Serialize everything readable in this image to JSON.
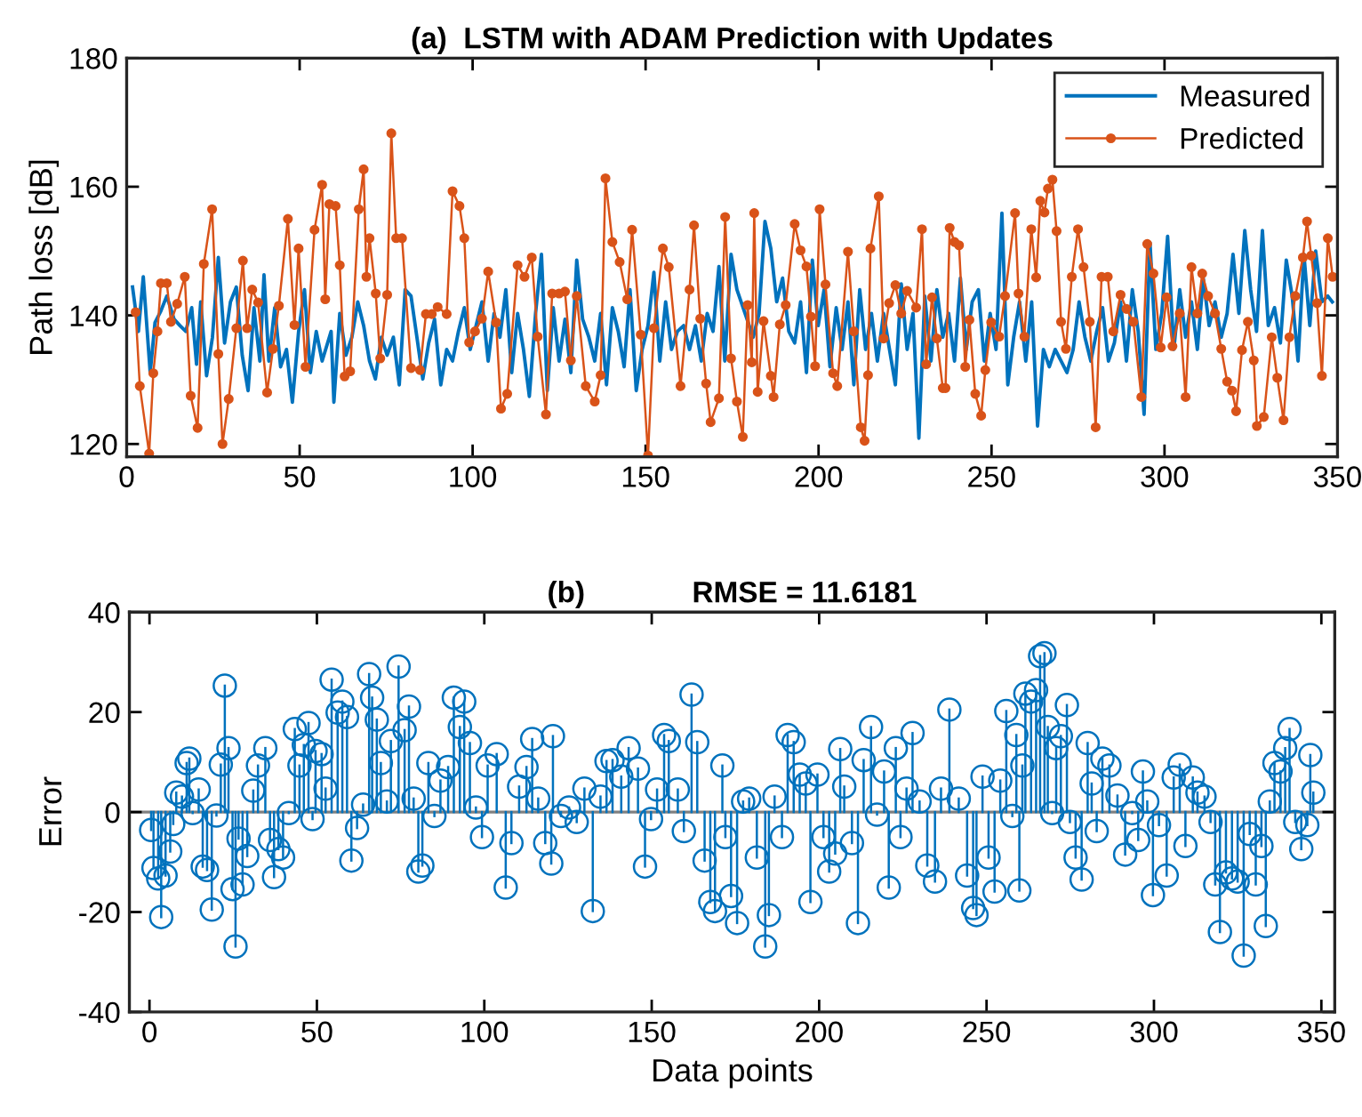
{
  "chart_data": [
    {
      "type": "line",
      "title": "(a)  LSTM with ADAM Prediction with Updates",
      "ylabel": "Path loss [dB]",
      "xlim": [
        0,
        350
      ],
      "xticks": [
        0,
        50,
        100,
        150,
        200,
        250,
        300,
        350
      ],
      "ylim": [
        118,
        180
      ],
      "yticks": [
        120,
        140,
        160,
        180
      ],
      "legend": "top right",
      "grid": false,
      "series": [
        {
          "name": "Measured",
          "color": "#0072bd",
          "x": [
            1.7,
            3.4,
            4.8,
            6.8,
            8.2,
            9.9,
            11.6,
            13.7,
            15.4,
            17.1,
            18.8,
            20.2,
            21.4,
            23.1,
            24.8,
            26.5,
            28.3,
            30,
            31.7,
            33.4,
            35.1,
            36.8,
            38.5,
            39.7,
            41.1,
            42.8,
            44.5,
            46.2,
            47.9,
            49.7,
            51.4,
            53.1,
            54.8,
            56.5,
            59.1,
            59.9,
            61.6,
            63.4,
            65.1,
            66.8,
            68.5,
            70.2,
            71.9,
            73.6,
            75.3,
            77.1,
            78.8,
            80.5,
            82.2,
            83.9,
            85.6,
            87.3,
            89,
            90.8,
            92.5,
            94.2,
            95.9,
            97.6,
            99.3,
            101,
            102.7,
            104.5,
            106.2,
            107.9,
            109.6,
            111.3,
            113,
            114.7,
            116.4,
            118.2,
            119.9,
            121.6,
            123.3,
            125,
            126.7,
            128.4,
            130.1,
            131.8,
            133.6,
            135.3,
            137,
            138.7,
            140.4,
            142.1,
            143.8,
            145.5,
            147.3,
            149,
            150.7,
            152.4,
            154.1,
            155.8,
            157.5,
            159.2,
            161,
            162.7,
            164.4,
            166.1,
            167.8,
            169.5,
            171.2,
            172.9,
            174.7,
            176.4,
            181.1,
            182.8,
            184.5,
            186.2,
            187.9,
            189.6,
            191.4,
            193.1,
            194.8,
            196.5,
            198.2,
            199.9,
            201.6,
            203.3,
            205.1,
            206.8,
            208.5,
            210.2,
            211.9,
            213.6,
            215.3,
            217,
            218.8,
            220.5,
            222.2,
            223.9,
            225.6,
            227.3,
            229,
            230.7,
            232.5,
            234.2,
            235.9,
            237.6,
            239.3,
            241,
            242.7,
            244.4,
            246.2,
            247.9,
            249.6,
            251.3,
            253,
            254.7,
            256.4,
            258.1,
            259.9,
            261.6,
            263.3,
            265,
            266.7,
            268.4,
            270.1,
            271.8,
            273.6,
            275.3,
            277,
            278.7,
            280.4,
            282.1,
            283.8,
            285.5,
            287.3,
            289,
            290.7,
            292.4,
            294.1,
            295.8,
            297.5,
            299.2,
            300.9,
            302.7,
            304.4,
            306.1,
            307.8,
            309.5,
            311.2,
            312.9,
            314.6,
            316.4,
            318.1,
            319.8,
            321.5,
            323.2,
            324.9,
            326.6,
            328.3,
            330,
            331.8,
            333.5,
            335.2,
            336.9,
            338.6,
            340.3,
            342,
            343.7,
            345.5,
            347.2,
            348.5
          ],
          "values": [
            144.4,
            137.5,
            146.0,
            131.1,
            138.9,
            140.7,
            143.0,
            139.4,
            138.4,
            137.5,
            141.2,
            132.4,
            142.1,
            130.6,
            136.6,
            149.0,
            135.7,
            142.1,
            144.4,
            133.8,
            128.3,
            141.2,
            132.9,
            146.3,
            132.9,
            141.2,
            132.0,
            134.7,
            126.5,
            137.5,
            144.0,
            131.1,
            137.5,
            132.9,
            137.5,
            126.5,
            140.3,
            133.8,
            136.6,
            142.1,
            138.4,
            132.9,
            130.1,
            136.6,
            133.8,
            136.6,
            129.2,
            144.0,
            143.0,
            136.6,
            130.1,
            135.7,
            139.4,
            129.2,
            134.7,
            132.9,
            137.5,
            141.2,
            134.7,
            138.4,
            142.1,
            132.9,
            140.3,
            136.6,
            144.0,
            131.1,
            140.3,
            134.7,
            127.4,
            140.3,
            149.5,
            128.3,
            141.2,
            132.9,
            139.4,
            131.1,
            148.6,
            139.4,
            136.6,
            132.9,
            140.3,
            129.2,
            141.2,
            137.5,
            132.0,
            144.0,
            128.3,
            134.7,
            138.4,
            146.7,
            132.9,
            142.1,
            134.7,
            137.5,
            138.4,
            134.7,
            138.4,
            132.9,
            140.3,
            137.5,
            147.6,
            132.9,
            149.5,
            144.0,
            136.6,
            140.3,
            154.6,
            150.4,
            142.1,
            145.8,
            137.5,
            135.7,
            142.1,
            131.1,
            148.6,
            138.4,
            144.0,
            132.0,
            141.2,
            134.7,
            142.1,
            129.2,
            144.0,
            134.7,
            140.3,
            132.9,
            140.3,
            134.7,
            129.2,
            144.9,
            134.7,
            140.3,
            120.9,
            143.0,
            132.9,
            144.0,
            136.6,
            140.3,
            132.9,
            145.8,
            134.7,
            142.1,
            144.0,
            132.9,
            140.3,
            134.7,
            155.9,
            129.2,
            136.6,
            142.1,
            132.9,
            142.1,
            122.8,
            134.7,
            132.0,
            134.7,
            132.9,
            131.1,
            134.7,
            142.1,
            136.6,
            132.9,
            137.5,
            141.2,
            132.9,
            135.7,
            142.1,
            132.9,
            144.0,
            137.5,
            124.6,
            151.3,
            134.7,
            140.3,
            152.3,
            134.7,
            144.0,
            136.6,
            142.1,
            134.7,
            145.8,
            138.4,
            142.1,
            136.6,
            140.3,
            149.5,
            140.3,
            153.2,
            144.0,
            137.5,
            153.2,
            138.4,
            141.2,
            135.7,
            148.6,
            143.0,
            132.9,
            149.5,
            138.4,
            150.0,
            142.1,
            143.0,
            142.1
          ]
        },
        {
          "name": "Predicted",
          "color": "#d95319",
          "marker": "circle",
          "x": [
            2.6,
            3.8,
            6.5,
            7.7,
            8.9,
            9.9,
            11.6,
            12.8,
            14.6,
            16.8,
            18.5,
            20.5,
            22.3,
            24.7,
            26.5,
            27.7,
            29.5,
            31.7,
            33.6,
            34.8,
            36.3,
            38,
            40.6,
            42.3,
            44,
            46.6,
            48.5,
            49.7,
            51.7,
            54.3,
            56.5,
            57.4,
            58.6,
            60.4,
            61.6,
            63,
            64.6,
            67.1,
            68.5,
            69.3,
            70.2,
            72,
            73.3,
            75.3,
            76.5,
            77.9,
            79.6,
            82.2,
            84.8,
            86.5,
            88.2,
            89.9,
            92.5,
            94.2,
            96.2,
            97.6,
            99,
            100.7,
            102.7,
            104.5,
            106.8,
            108.2,
            110,
            113,
            115,
            117.1,
            118.8,
            121.2,
            123,
            125,
            126.7,
            128.4,
            130.1,
            132.7,
            135.3,
            137,
            138.4,
            140.4,
            142.5,
            144.7,
            146.1,
            148.6,
            150.7,
            152.4,
            155,
            156.7,
            160.1,
            162.7,
            164,
            165.8,
            167.5,
            168.8,
            171.2,
            173,
            174.7,
            176.4,
            178.1,
            179.5,
            180.7,
            181.4,
            182.4,
            184.1,
            186.2,
            187,
            188.8,
            190.5,
            193.1,
            194.8,
            196.5,
            197.8,
            199,
            200.3,
            202,
            204.2,
            205.4,
            208.5,
            210.2,
            212.2,
            213.3,
            214.3,
            215,
            217.4,
            218.8,
            220.4,
            222.2,
            223.9,
            225.6,
            228.2,
            229.9,
            231.1,
            232.8,
            234.2,
            235.9,
            236.7,
            237.9,
            239.3,
            240.6,
            242.4,
            243.6,
            245.3,
            247,
            248.2,
            249.9,
            252.2,
            253.9,
            256.8,
            257.8,
            259.5,
            261.5,
            262.9,
            264.1,
            265.3,
            266.3,
            267.6,
            268.8,
            270.1,
            271.5,
            273.2,
            275,
            276.6,
            278.4,
            280.1,
            281.8,
            283.6,
            285.2,
            287.3,
            289,
            291,
            293.3,
            295,
            296.8,
            298.9,
            300.6,
            302.3,
            304.4,
            306.1,
            307.8,
            309.5,
            310.9,
            312.6,
            314.6,
            316.4,
            318.1,
            319.5,
            320.7,
            322.4,
            324.1,
            325.8,
            326.7,
            328.7,
            331,
            332.6,
            334.4,
            336.1,
            337.8,
            340,
            341.2,
            342.4,
            344.1,
            345.5,
            347.2,
            348.6
          ],
          "values": [
            140.5,
            129,
            118.5,
            131,
            137.5,
            145,
            145,
            139,
            141.8,
            146,
            127.5,
            122.5,
            148,
            156.5,
            134,
            120,
            127,
            138,
            148.5,
            138,
            144,
            142,
            128,
            134.8,
            141.5,
            155,
            138.5,
            150.4,
            132,
            153.3,
            160.3,
            142.5,
            157.3,
            157,
            147.8,
            130.5,
            131.3,
            156.5,
            162.7,
            146,
            152,
            143.4,
            133.3,
            143.2,
            168.3,
            152,
            152,
            131.8,
            131.5,
            140.2,
            140.2,
            141.3,
            140.2,
            159.3,
            157,
            152,
            135.8,
            137.5,
            139.5,
            146.8,
            138.9,
            125.5,
            127.8,
            147.8,
            146,
            149,
            136.7,
            124.6,
            143.4,
            143.4,
            143.7,
            133,
            143,
            129,
            126.6,
            130.7,
            161.3,
            151.4,
            148.3,
            142.5,
            153.3,
            137,
            118.2,
            138,
            150.4,
            147.5,
            129,
            144,
            154,
            139.5,
            129.4,
            123.4,
            127.1,
            155.3,
            133.3,
            126.6,
            121.1,
            141.6,
            132.7,
            155.9,
            128.1,
            139.1,
            130.6,
            127.3,
            138.6,
            141.6,
            154.2,
            150.1,
            147.6,
            139.8,
            132.1,
            156.5,
            144.8,
            131,
            129,
            149.9,
            137.5,
            122.6,
            120.5,
            130.7,
            150.4,
            158.5,
            136.4,
            141.9,
            144.7,
            140.3,
            143.8,
            141.2,
            153.4,
            132.4,
            142.8,
            136.4,
            128.7,
            128.7,
            153.6,
            151.4,
            150.9,
            132,
            139.3,
            127.8,
            124.4,
            131.5,
            138.9,
            136.7,
            143,
            155.9,
            143.4,
            136.7,
            153.4,
            145.9,
            157.8,
            156,
            159.7,
            161.1,
            153.1,
            139,
            134.8,
            146,
            153.4,
            147.5,
            139,
            122.6,
            146,
            146,
            137.5,
            143.2,
            141,
            139,
            127.3,
            151.1,
            146.5,
            135,
            142.8,
            135.2,
            140.3,
            127.3,
            147.5,
            140.3,
            146.5,
            143,
            140.3,
            134.8,
            129.7,
            128.3,
            125.1,
            134.6,
            139,
            133,
            122.8,
            124.2,
            136.6,
            130.3,
            123.7,
            136.6,
            143,
            149,
            154.6,
            149.3,
            141.9,
            130.6,
            152,
            146
          ]
        }
      ]
    },
    {
      "type": "lollipop",
      "title": "(b)             RMSE = 11.6181",
      "xlabel": "Data points",
      "ylabel": "Error",
      "xlim": [
        -6,
        354
      ],
      "xticks": [
        0,
        50,
        100,
        150,
        200,
        250,
        300,
        350
      ],
      "ylim": [
        -40,
        40
      ],
      "yticks": [
        -40,
        -20,
        0,
        20,
        40
      ],
      "grid": false,
      "ref_lines": [
        {
          "axis": "y",
          "value": 0,
          "color": "#808080"
        }
      ],
      "series": [
        {
          "color": "#0072bd",
          "marker": "circle",
          "x": [
            0.5,
            1.2,
            2.6,
            3.5,
            4.8,
            6.2,
            7.1,
            8,
            9.7,
            11.1,
            11.9,
            12.9,
            14.7,
            15.9,
            17.2,
            18.6,
            20,
            21.3,
            22.5,
            23.6,
            24.8,
            25.7,
            26.6,
            27.8,
            29.2,
            31,
            32.4,
            34.6,
            36,
            37.2,
            38.5,
            39.9,
            41.6,
            43.4,
            44.8,
            46.1,
            47.5,
            48.7,
            49.6,
            51.4,
            52.6,
            54.4,
            56.2,
            57.6,
            59,
            60.3,
            62,
            63.8,
            65.6,
            66.5,
            67.9,
            69.1,
            70.9,
            72.1,
            74.4,
            76.2,
            77.5,
            78.9,
            80.3,
            81.5,
            83.3,
            85.1,
            86.9,
            89.2,
            90.9,
            92.7,
            94,
            95.7,
            97.5,
            99.3,
            101,
            103.7,
            106.4,
            108.1,
            110.4,
            112.6,
            114.3,
            116.1,
            118.2,
            120,
            120.5,
            122.9,
            125.3,
            127.6,
            129.9,
            132.4,
            134.7,
            136.5,
            138.3,
            140.9,
            143.1,
            145.9,
            148,
            149.8,
            151.6,
            153.7,
            155.1,
            157.8,
            159.6,
            161.9,
            163.6,
            165.8,
            167.5,
            168.9,
            171.1,
            172,
            173.7,
            175.5,
            177.3,
            179.1,
            181.4,
            183.9,
            185,
            186.7,
            188.9,
            190.6,
            192.4,
            194.2,
            196,
            197.4,
            199.5,
            201.3,
            203,
            204.8,
            206.3,
            207.5,
            209.8,
            211.6,
            213.3,
            215.5,
            217.3,
            219.4,
            220.8,
            222.9,
            224.3,
            226.1,
            227.9,
            230,
            232.3,
            234.6,
            236.4,
            238.9,
            241.7,
            244.2,
            246,
            247,
            248.8,
            250.6,
            252.4,
            254.1,
            255.9,
            257.7,
            258.9,
            259.8,
            260.7,
            261.6,
            263.3,
            264.8,
            266,
            267.3,
            268.3,
            269.6,
            270.8,
            272.2,
            274,
            274.9,
            276.6,
            278.4,
            280.2,
            281.4,
            282.9,
            284.6,
            286.7,
            289.1,
            291.4,
            293.5,
            295.3,
            296.7,
            298,
            299.7,
            301.5,
            303.8,
            305.9,
            307.7,
            309.4,
            311.6,
            313,
            315.1,
            316.9,
            318.3,
            319.7,
            321.5,
            323.3,
            325,
            326.8,
            328.6,
            330.4,
            332.1,
            333.4,
            334.6,
            336,
            337.8,
            339.2,
            340.5,
            342.2,
            344,
            345.8,
            346.7,
            347.6
          ],
          "values": [
            -3.6,
            -11.2,
            -13.3,
            -21,
            -12.7,
            -7.9,
            -2.4,
            3.9,
            3.1,
            9.8,
            10.7,
            -0.2,
            4.5,
            -10.9,
            -11.6,
            -19.5,
            -0.7,
            9.5,
            25.3,
            12.8,
            -15.4,
            -26.9,
            -5.3,
            -14.5,
            -8.8,
            4.3,
            9.3,
            12.8,
            -5.6,
            -13,
            -7.4,
            -9.1,
            -0.2,
            16.6,
            9.3,
            13.4,
            17.8,
            -1.4,
            12.2,
            11.6,
            4.7,
            26.5,
            19.9,
            22.1,
            19,
            -9.7,
            -3.2,
            1.5,
            27.6,
            22.9,
            18.5,
            9.8,
            2.1,
            14.2,
            29.1,
            16.4,
            21.1,
            2.7,
            -11.9,
            -10.7,
            9.8,
            -0.8,
            6.3,
            9,
            22.9,
            17,
            22.1,
            13.8,
            0.9,
            -5,
            9.3,
            11.6,
            -15.1,
            -6.2,
            5.1,
            9,
            14.6,
            2.7,
            -6.2,
            -10.3,
            15.2,
            -0.8,
            0.9,
            -2,
            4.7,
            -19.8,
            3.1,
            10.2,
            10.4,
            7.1,
            12.8,
            8.7,
            -10.9,
            -1.4,
            4.5,
            15.4,
            14.2,
            4.5,
            -3.8,
            23.5,
            14,
            -9.7,
            -18,
            -19.8,
            9.3,
            -5,
            -16.8,
            -22.2,
            2.1,
            2.7,
            -9.1,
            -26.9,
            -20.6,
            3.1,
            -5,
            15.4,
            14,
            7.5,
            5.7,
            -18,
            7.5,
            -5,
            -11.9,
            -8.3,
            12.6,
            5.1,
            -6.2,
            -22.2,
            10.4,
            17,
            -0.5,
            8.1,
            -15.1,
            12.8,
            -5,
            4.7,
            15.8,
            2.1,
            -10.7,
            -13.9,
            4.7,
            20.5,
            2.7,
            -12.7,
            -19.2,
            -20.6,
            7.1,
            -9.1,
            -15.9,
            6.3,
            20.2,
            -0.8,
            15.4,
            -15.7,
            9.3,
            23.7,
            22.1,
            24.4,
            31.2,
            31.8,
            17,
            -0.2,
            12.8,
            15.2,
            21.4,
            -2,
            -9.1,
            -13.5,
            13.8,
            5.7,
            -3.8,
            10.7,
            9.3,
            3.3,
            -8.5,
            -0.2,
            -5.6,
            8.1,
            2.1,
            -16.6,
            -2.6,
            -12.7,
            6.9,
            9.5,
            -6.8,
            6.9,
            3.9,
            3.1,
            -2,
            -14.5,
            -24,
            -12.1,
            -13.3,
            -13.9,
            -28.7,
            -4.4,
            -14.5,
            -6.8,
            -22.8,
            2.1,
            9.8,
            8.1,
            12.8,
            16.6,
            -2,
            -7.4,
            -2.6,
            11.4,
            3.9
          ]
        }
      ]
    }
  ]
}
